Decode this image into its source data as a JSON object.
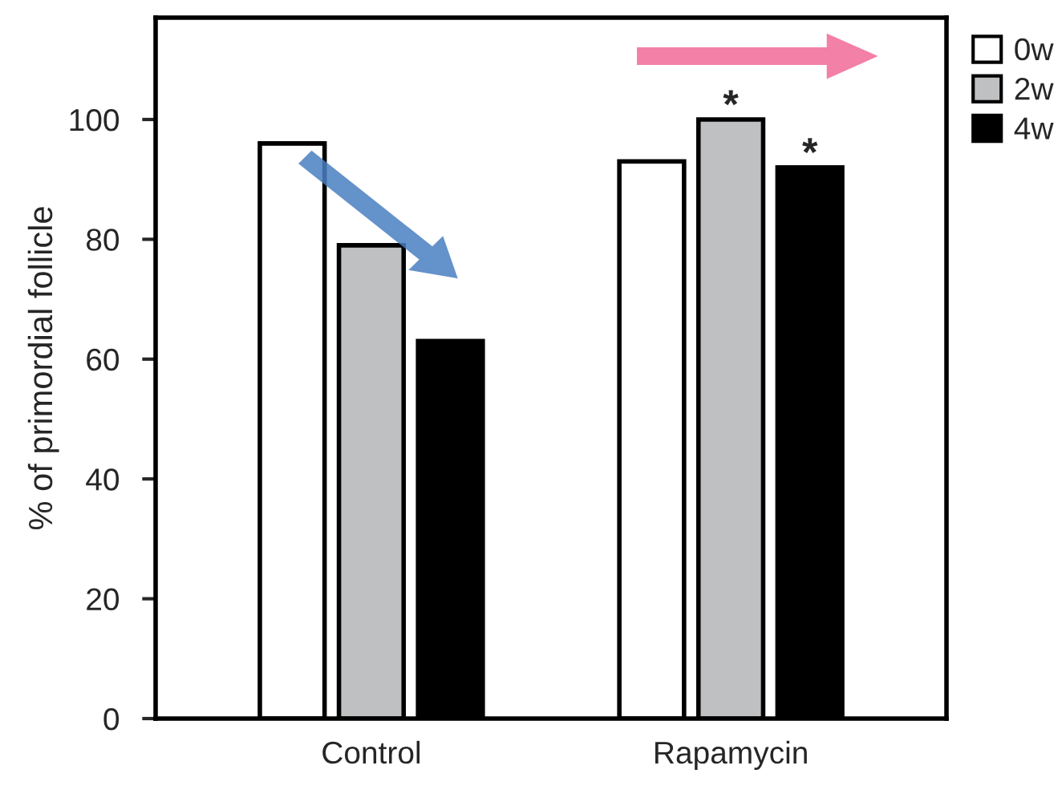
{
  "chart_data": {
    "type": "bar",
    "ylabel": "% of primordial follicle",
    "categories": [
      "Control",
      "Rapamycin"
    ],
    "series": [
      {
        "name": "0w",
        "color": "#ffffff",
        "values": [
          96,
          93
        ]
      },
      {
        "name": "2w",
        "color": "#bfc0c2",
        "values": [
          79,
          100
        ]
      },
      {
        "name": "4w",
        "color": "#000000",
        "values": [
          63,
          92
        ]
      }
    ],
    "ylim": [
      0,
      117
    ],
    "yticks": [
      0,
      20,
      40,
      60,
      80,
      100
    ],
    "grid": false,
    "legend": "top right",
    "annotations": [
      "*",
      "*"
    ]
  }
}
